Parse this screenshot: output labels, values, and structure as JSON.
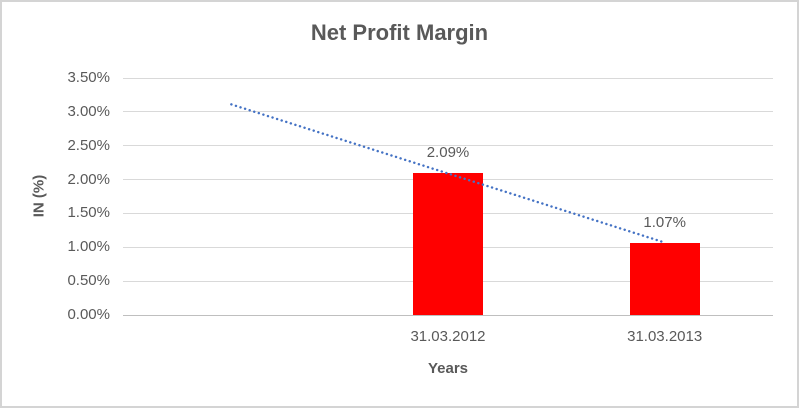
{
  "chart_data": {
    "type": "bar",
    "title": "Net Profit Margin",
    "xlabel": "Years",
    "ylabel": "IN (%)",
    "categories": [
      "",
      "31.03.2012",
      "31.03.2013"
    ],
    "values": [
      null,
      2.09,
      1.07
    ],
    "bar_labels": [
      null,
      "2.09%",
      "1.07%"
    ],
    "ylim": [
      0,
      3.5
    ],
    "ytick_step": 0.5,
    "ytick_labels": [
      "0.00%",
      "0.50%",
      "1.00%",
      "1.50%",
      "2.00%",
      "2.50%",
      "3.00%",
      "3.50%"
    ],
    "grid": true,
    "legend": "none",
    "trendline": {
      "style": "dotted",
      "color": "#4472C4",
      "start": {
        "cat": 0,
        "value": 3.11
      },
      "end": {
        "cat": 2,
        "value": 1.07
      }
    },
    "colors": {
      "bar": "#FF0000",
      "text": "#595959",
      "gridline": "#D9D9D9",
      "axis_line": "#BFBFBF",
      "frame_border": "#D4D4D4",
      "background": "#FFFFFF"
    }
  }
}
